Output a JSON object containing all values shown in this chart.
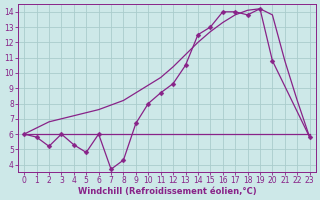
{
  "xlabel": "Windchill (Refroidissement éolien,°C)",
  "x": [
    0,
    1,
    2,
    3,
    4,
    5,
    6,
    7,
    8,
    9,
    10,
    11,
    12,
    13,
    14,
    15,
    16,
    17,
    18,
    19,
    20,
    21,
    22,
    23
  ],
  "zigzag_y": [
    6.0,
    5.8,
    5.2,
    6.0,
    5.3,
    4.8,
    6.0,
    3.7,
    4.3,
    6.7,
    8.0,
    8.7,
    9.3,
    10.5,
    12.5,
    13.0,
    14.0,
    14.0,
    13.8,
    14.2,
    10.8,
    null,
    null,
    5.8
  ],
  "smooth_y": [
    6.0,
    6.4,
    6.8,
    7.0,
    7.2,
    7.4,
    7.6,
    7.9,
    8.2,
    8.7,
    9.2,
    9.7,
    10.4,
    11.2,
    12.0,
    12.7,
    13.3,
    13.8,
    14.1,
    14.2,
    13.8,
    10.8,
    8.2,
    5.8
  ],
  "flat_y": 6.0,
  "flat_x_start": 0,
  "flat_x_end": 23,
  "color": "#882288",
  "bg_color": "#cde8e8",
  "grid_color": "#aacccc",
  "xlim": [
    -0.5,
    23.5
  ],
  "ylim": [
    3.5,
    14.5
  ],
  "yticks": [
    4,
    5,
    6,
    7,
    8,
    9,
    10,
    11,
    12,
    13,
    14
  ],
  "xticks": [
    0,
    1,
    2,
    3,
    4,
    5,
    6,
    7,
    8,
    9,
    10,
    11,
    12,
    13,
    14,
    15,
    16,
    17,
    18,
    19,
    20,
    21,
    22,
    23
  ],
  "tick_fontsize": 5.5,
  "xlabel_fontsize": 6.0
}
